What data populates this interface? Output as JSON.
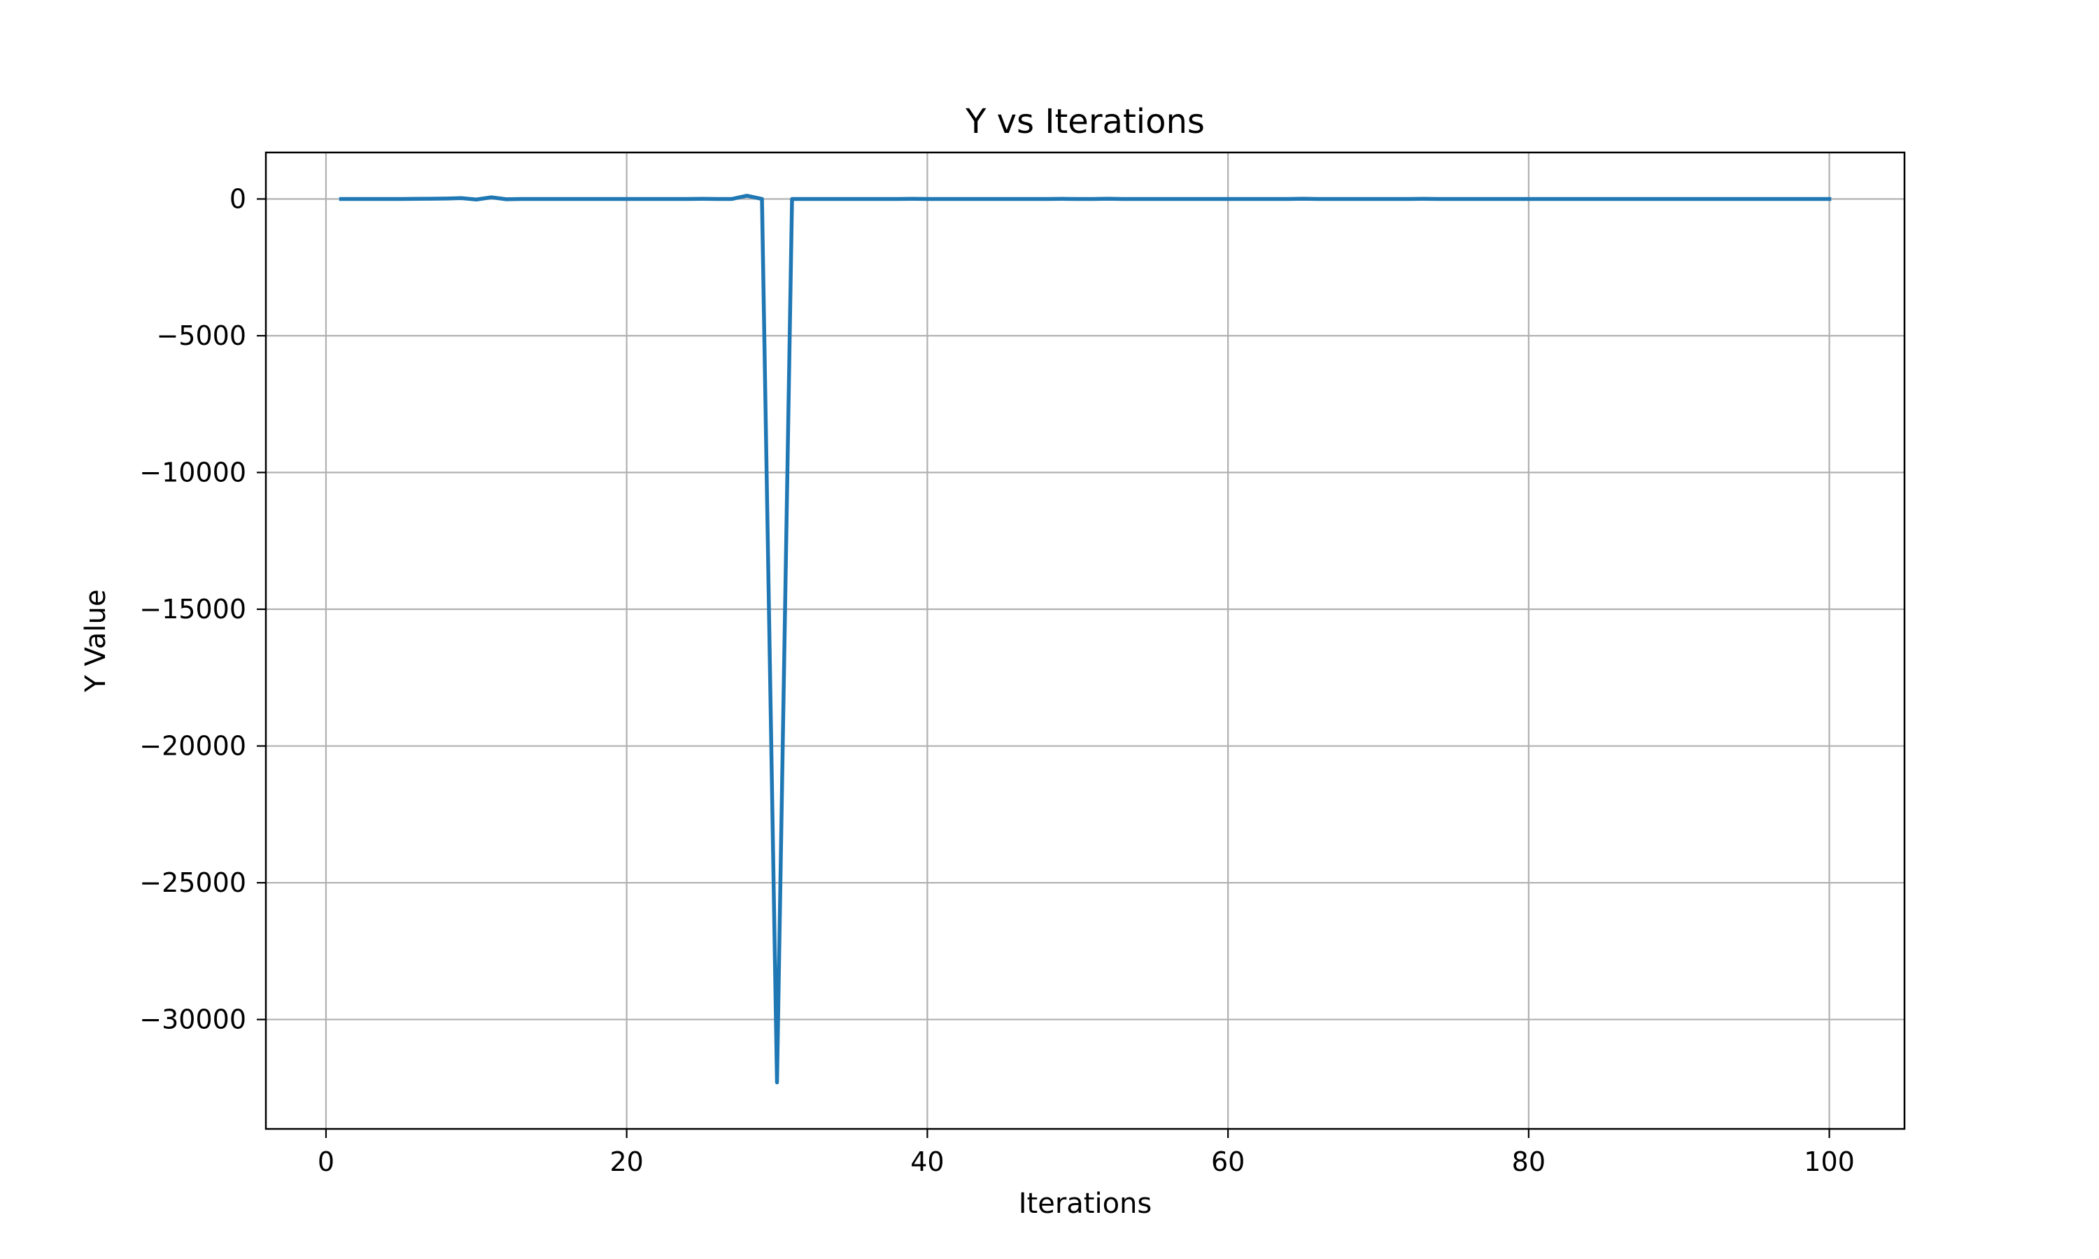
{
  "chart_data": {
    "type": "line",
    "title": "Y vs Iterations",
    "xlabel": "Iterations",
    "ylabel": "Y Value",
    "xlim": [
      -4,
      105
    ],
    "ylim": [
      -34000,
      1700
    ],
    "x_ticks": [
      0,
      20,
      40,
      60,
      80,
      100
    ],
    "y_ticks": [
      0,
      -5000,
      -10000,
      -15000,
      -20000,
      -25000,
      -30000
    ],
    "x_tick_labels": [
      "0",
      "20",
      "40",
      "60",
      "80",
      "100"
    ],
    "y_tick_labels": [
      "0",
      "−5000",
      "−10000",
      "−15000",
      "−20000",
      "−25000",
      "−30000"
    ],
    "grid": true,
    "legend": "none",
    "colors": {
      "line": "#1f77b4",
      "grid": "#b0b0b0",
      "axes": "#000000"
    },
    "series": [
      {
        "x": [
          1,
          2,
          3,
          4,
          5,
          6,
          7,
          8,
          9,
          10,
          11,
          12,
          13,
          14,
          15,
          16,
          17,
          18,
          19,
          20,
          21,
          22,
          23,
          24,
          25,
          26,
          27,
          28,
          29,
          30,
          31,
          32,
          33,
          34,
          35,
          36,
          37,
          38,
          39,
          40,
          41,
          42,
          43,
          44,
          45,
          46,
          47,
          48,
          49,
          50,
          51,
          52,
          53,
          54,
          55,
          56,
          57,
          58,
          59,
          60,
          61,
          62,
          63,
          64,
          65,
          66,
          67,
          68,
          69,
          70,
          71,
          72,
          73,
          74,
          75,
          76,
          77,
          78,
          79,
          80,
          81,
          82,
          83,
          84,
          85,
          86,
          87,
          88,
          89,
          90,
          91,
          92,
          93,
          94,
          95,
          96,
          97,
          98,
          99,
          100
        ],
        "y": [
          0,
          0,
          0,
          0,
          0,
          5,
          10,
          15,
          30,
          -20,
          60,
          -10,
          0,
          0,
          0,
          0,
          0,
          0,
          0,
          0,
          0,
          0,
          0,
          0,
          5,
          0,
          0,
          120,
          0,
          -32300,
          0,
          0,
          0,
          0,
          0,
          0,
          0,
          0,
          5,
          0,
          0,
          0,
          0,
          0,
          0,
          0,
          0,
          0,
          5,
          0,
          0,
          10,
          0,
          0,
          0,
          0,
          0,
          0,
          0,
          0,
          0,
          0,
          0,
          0,
          10,
          0,
          0,
          0,
          0,
          0,
          0,
          0,
          5,
          0,
          0,
          0,
          0,
          0,
          0,
          0,
          0,
          0,
          0,
          0,
          0,
          0,
          0,
          0,
          0,
          0,
          0,
          0,
          0,
          0,
          0,
          0,
          0,
          0,
          0,
          0
        ]
      }
    ]
  }
}
